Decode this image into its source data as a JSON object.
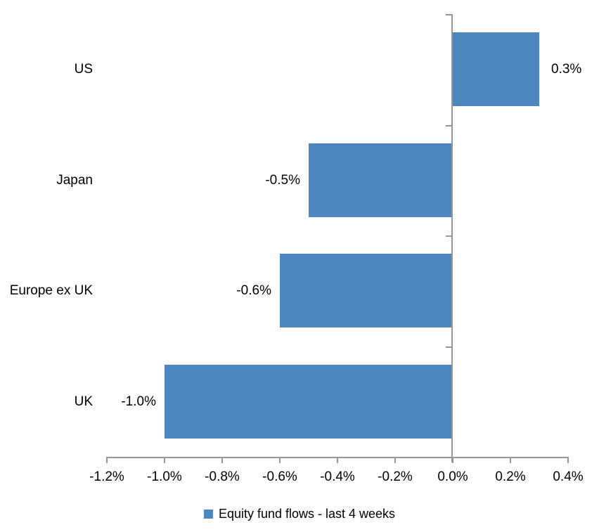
{
  "chart_data": {
    "type": "bar",
    "orientation": "horizontal",
    "title": "",
    "xlabel": "",
    "ylabel": "",
    "categories": [
      "US",
      "Japan",
      "Europe ex UK",
      "UK"
    ],
    "series": [
      {
        "name": "Equity fund flows - last 4 weeks",
        "values": [
          0.3,
          -0.5,
          -0.6,
          -1.0
        ]
      }
    ],
    "data_labels": [
      "0.3%",
      "-0.5%",
      "-0.6%",
      "-1.0%"
    ],
    "xlim": [
      -1.2,
      0.4
    ],
    "x_tick_values": [
      -1.2,
      -1.0,
      -0.8,
      -0.6,
      -0.4,
      -0.2,
      0.0,
      0.2,
      0.4
    ],
    "x_tick_labels": [
      "-1.2%",
      "-1.0%",
      "-0.8%",
      "-0.6%",
      "-0.4%",
      "-0.2%",
      "0.0%",
      "0.2%",
      "0.4%"
    ],
    "grid": false,
    "legend": {
      "position": "bottom",
      "entries": [
        "Equity fund flows - last 4 weeks"
      ]
    },
    "colors": {
      "bar": "#4e87c0",
      "axis": "#969696",
      "text": "#000000",
      "background": "#ffffff"
    }
  }
}
